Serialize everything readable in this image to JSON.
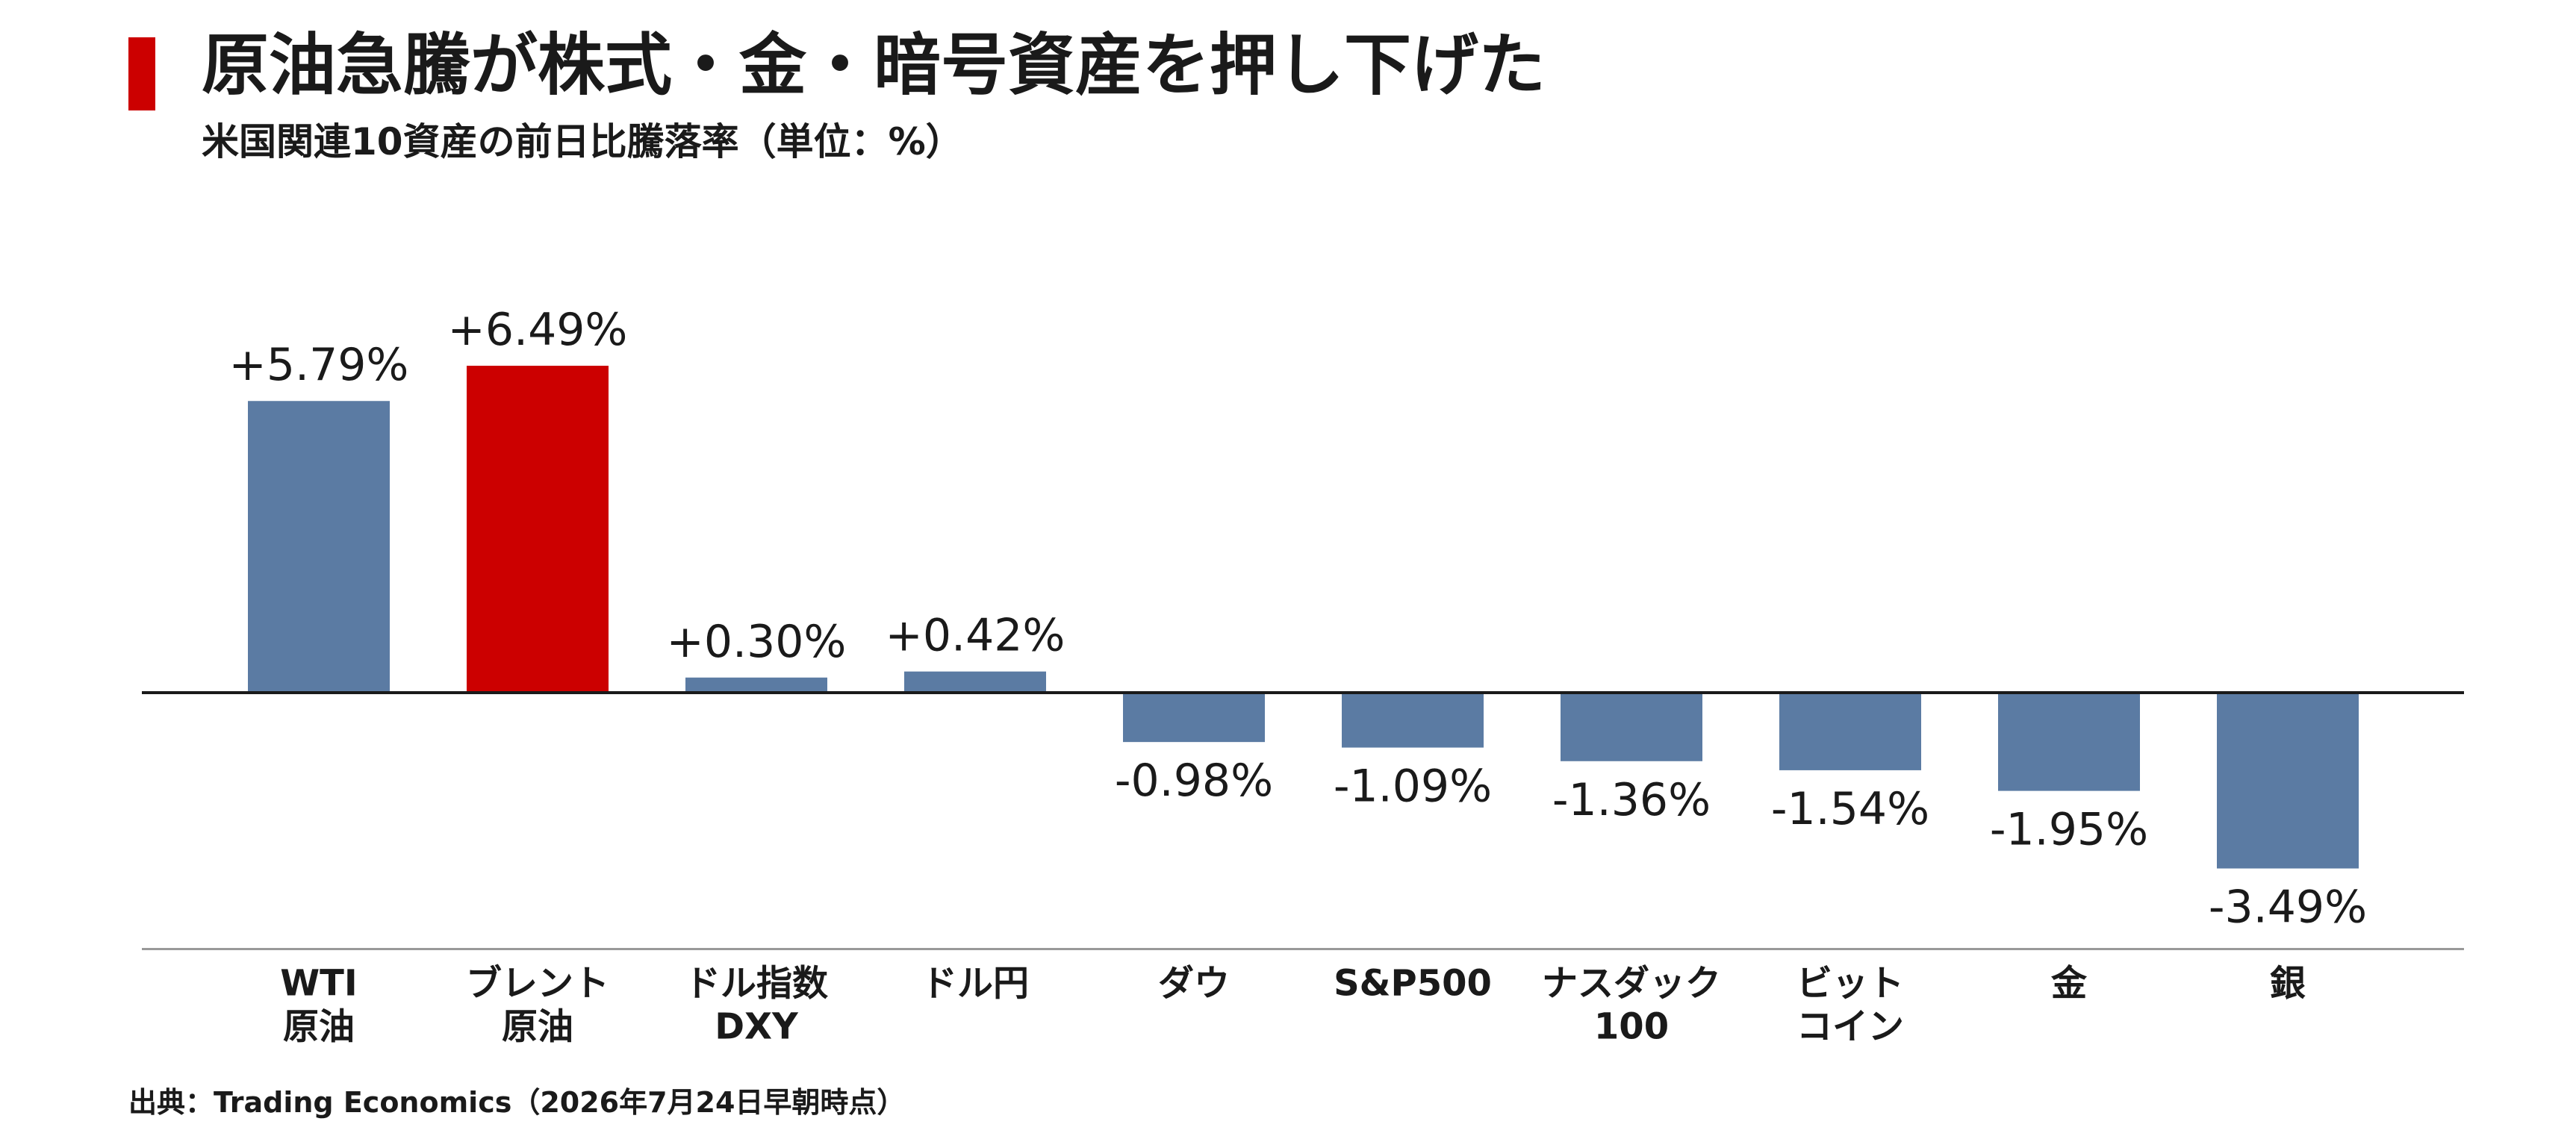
{
  "header": {
    "title": "原油急騰が株式・金・暗号資産を押し下げた",
    "subtitle": "米国関連10資産の前日比騰落率（単位：%）",
    "accent_color": "#cc0000"
  },
  "footer": {
    "source": "出典：Trading Economics（2026年7月24日早朝時点）"
  },
  "colors": {
    "default_bar": "#5b7ba3",
    "highlight_bar": "#cc0000",
    "baseline": "#1a1a1a",
    "axis": "#999999"
  },
  "chart_data": {
    "type": "bar",
    "title": "原油急騰が株式・金・暗号資産を押し下げた",
    "subtitle": "米国関連10資産の前日比騰落率（単位：%）",
    "unit": "%",
    "grid": false,
    "categories": [
      [
        "WTI",
        "原油"
      ],
      [
        "ブレント",
        "原油"
      ],
      [
        "ドル指数",
        "DXY"
      ],
      [
        "ドル円"
      ],
      [
        "ダウ"
      ],
      [
        "S&P500"
      ],
      [
        "ナスダック",
        "100"
      ],
      [
        "ビット",
        "コイン"
      ],
      [
        "金"
      ],
      [
        "銀"
      ]
    ],
    "values": [
      5.79,
      6.49,
      0.3,
      0.42,
      -0.98,
      -1.09,
      -1.36,
      -1.54,
      -1.95,
      -3.49
    ],
    "labels": [
      "+5.79%",
      "+6.49%",
      "+0.30%",
      "+0.42%",
      "-0.98%",
      "-1.09%",
      "-1.36%",
      "-1.54%",
      "-1.95%",
      "-3.49%"
    ],
    "highlight_index": 1,
    "ylim": [
      -5.09,
      6.49
    ]
  }
}
